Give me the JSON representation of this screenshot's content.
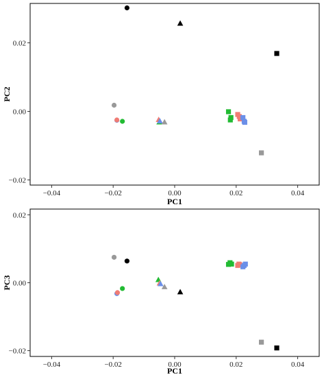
{
  "chart_data": [
    {
      "type": "scatter",
      "xlabel": "PC1",
      "ylabel": "PC2",
      "xlim": [
        -0.047,
        0.047
      ],
      "ylim": [
        -0.0215,
        0.0315
      ],
      "xticks": [
        -0.04,
        -0.02,
        0.0,
        0.02,
        0.04
      ],
      "xtick_labels": [
        "−0.04",
        "−0.02",
        "0.00",
        "0.02",
        "0.04"
      ],
      "yticks": [
        -0.02,
        0.0,
        0.02
      ],
      "ytick_labels": [
        "−0.02",
        "0.00",
        "0.02"
      ],
      "grid": false,
      "points": [
        {
          "x": -0.0155,
          "y": 0.0302,
          "shape": "circle",
          "color": "#000000"
        },
        {
          "x": 0.0018,
          "y": 0.0257,
          "shape": "triangle",
          "color": "#000000"
        },
        {
          "x": 0.0332,
          "y": 0.0169,
          "shape": "square",
          "color": "#000000"
        },
        {
          "x": -0.0197,
          "y": 0.0018,
          "shape": "circle",
          "color": "#999999"
        },
        {
          "x": -0.0188,
          "y": -0.0026,
          "shape": "circle",
          "color": "#6b8fe8"
        },
        {
          "x": -0.0188,
          "y": -0.0025,
          "shape": "circle",
          "color": "#f07c74"
        },
        {
          "x": -0.017,
          "y": -0.0029,
          "shape": "circle",
          "color": "#22bb33"
        },
        {
          "x": -0.0052,
          "y": -0.0024,
          "shape": "triangle",
          "color": "#f07c74"
        },
        {
          "x": -0.005,
          "y": -0.0031,
          "shape": "triangle",
          "color": "#22bb33"
        },
        {
          "x": -0.0048,
          "y": -0.0028,
          "shape": "triangle",
          "color": "#6b8fe8"
        },
        {
          "x": -0.0033,
          "y": -0.0031,
          "shape": "triangle",
          "color": "#999999"
        },
        {
          "x": 0.0175,
          "y": -0.0001,
          "shape": "square",
          "color": "#22bb33"
        },
        {
          "x": 0.0183,
          "y": -0.0018,
          "shape": "square",
          "color": "#22bb33"
        },
        {
          "x": 0.0181,
          "y": -0.0025,
          "shape": "square",
          "color": "#22bb33"
        },
        {
          "x": 0.0205,
          "y": -0.0009,
          "shape": "square",
          "color": "#f07c74"
        },
        {
          "x": 0.021,
          "y": -0.0015,
          "shape": "square",
          "color": "#f07c74"
        },
        {
          "x": 0.0213,
          "y": -0.0022,
          "shape": "square",
          "color": "#f07c74"
        },
        {
          "x": 0.0222,
          "y": -0.0018,
          "shape": "square",
          "color": "#6b8fe8"
        },
        {
          "x": 0.0226,
          "y": -0.0029,
          "shape": "square",
          "color": "#6b8fe8"
        },
        {
          "x": 0.0228,
          "y": -0.0032,
          "shape": "square",
          "color": "#6b8fe8"
        },
        {
          "x": 0.0282,
          "y": -0.0121,
          "shape": "square",
          "color": "#999999"
        }
      ]
    },
    {
      "type": "scatter",
      "xlabel": "PC1",
      "ylabel": "PC3",
      "xlim": [
        -0.047,
        0.047
      ],
      "ylim": [
        -0.0217,
        0.0217
      ],
      "xticks": [
        -0.04,
        -0.02,
        0.0,
        0.02,
        0.04
      ],
      "xtick_labels": [
        "−0.04",
        "−0.02",
        "0.00",
        "0.02",
        "0.04"
      ],
      "yticks": [
        -0.02,
        0.0,
        0.02
      ],
      "ytick_labels": [
        "−0.02",
        "0.00",
        "0.02"
      ],
      "grid": false,
      "points": [
        {
          "x": -0.0197,
          "y": 0.0075,
          "shape": "circle",
          "color": "#999999"
        },
        {
          "x": -0.0155,
          "y": 0.0064,
          "shape": "circle",
          "color": "#000000"
        },
        {
          "x": -0.0188,
          "y": -0.0032,
          "shape": "circle",
          "color": "#6b8fe8"
        },
        {
          "x": -0.0186,
          "y": -0.0029,
          "shape": "circle",
          "color": "#f07c74"
        },
        {
          "x": -0.017,
          "y": -0.0017,
          "shape": "circle",
          "color": "#22bb33"
        },
        {
          "x": -0.0053,
          "y": 0.0009,
          "shape": "triangle",
          "color": "#22bb33"
        },
        {
          "x": -0.0049,
          "y": -0.0001,
          "shape": "triangle",
          "color": "#f07c74"
        },
        {
          "x": -0.0046,
          "y": -0.0003,
          "shape": "triangle",
          "color": "#6b8fe8"
        },
        {
          "x": -0.0033,
          "y": -0.0012,
          "shape": "triangle",
          "color": "#999999"
        },
        {
          "x": 0.0018,
          "y": -0.0027,
          "shape": "triangle",
          "color": "#000000"
        },
        {
          "x": 0.0175,
          "y": 0.0054,
          "shape": "square",
          "color": "#22bb33"
        },
        {
          "x": 0.018,
          "y": 0.0059,
          "shape": "square",
          "color": "#22bb33"
        },
        {
          "x": 0.0185,
          "y": 0.0055,
          "shape": "square",
          "color": "#22bb33"
        },
        {
          "x": 0.0205,
          "y": 0.0051,
          "shape": "square",
          "color": "#f07c74"
        },
        {
          "x": 0.0209,
          "y": 0.0055,
          "shape": "square",
          "color": "#f07c74"
        },
        {
          "x": 0.0212,
          "y": 0.0053,
          "shape": "square",
          "color": "#f07c74"
        },
        {
          "x": 0.0222,
          "y": 0.0047,
          "shape": "square",
          "color": "#6b8fe8"
        },
        {
          "x": 0.0226,
          "y": 0.0051,
          "shape": "square",
          "color": "#6b8fe8"
        },
        {
          "x": 0.023,
          "y": 0.0055,
          "shape": "square",
          "color": "#6b8fe8"
        },
        {
          "x": 0.0282,
          "y": -0.0175,
          "shape": "square",
          "color": "#999999"
        },
        {
          "x": 0.0332,
          "y": -0.0192,
          "shape": "square",
          "color": "#000000"
        }
      ]
    }
  ]
}
